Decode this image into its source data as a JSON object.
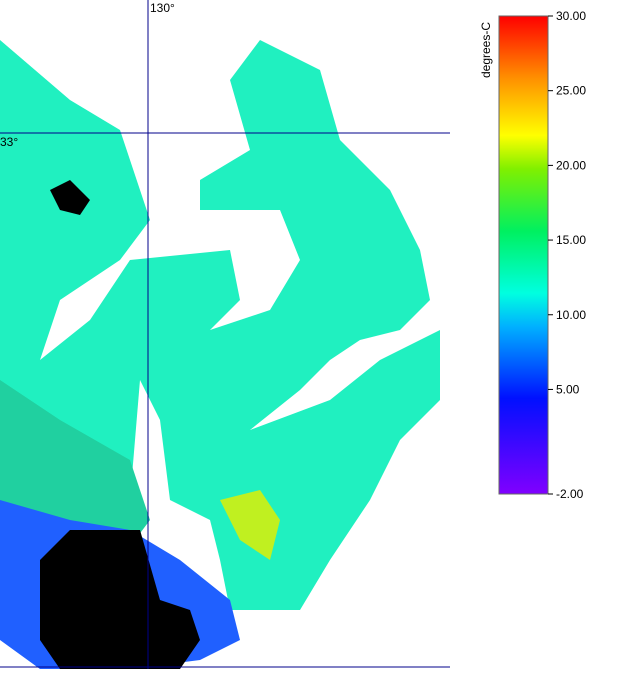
{
  "map": {
    "longitude_label": "130°",
    "latitude_label": "33°"
  },
  "colorbar": {
    "title": "degrees-C",
    "lim": [
      -2,
      30
    ],
    "ticks": [
      {
        "value": 30,
        "label": "30.00"
      },
      {
        "value": 25,
        "label": "25.00"
      },
      {
        "value": 20,
        "label": "20.00"
      },
      {
        "value": 15,
        "label": "15.00"
      },
      {
        "value": 10,
        "label": "10.00"
      },
      {
        "value": 5,
        "label": "5.00"
      },
      {
        "value": -2,
        "label": "-2.00"
      }
    ]
  }
}
